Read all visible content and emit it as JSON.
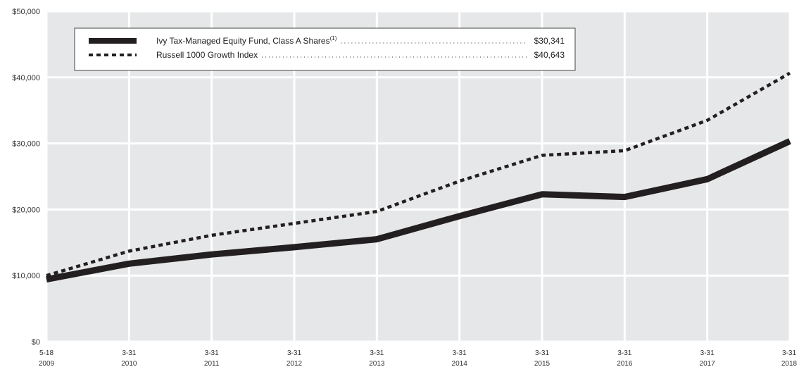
{
  "chart_data": {
    "type": "line",
    "x": [
      {
        "line1": "5-18",
        "line2": "2009"
      },
      {
        "line1": "3-31",
        "line2": "2010"
      },
      {
        "line1": "3-31",
        "line2": "2011"
      },
      {
        "line1": "3-31",
        "line2": "2012"
      },
      {
        "line1": "3-31",
        "line2": "2013"
      },
      {
        "line1": "3-31",
        "line2": "2014"
      },
      {
        "line1": "3-31",
        "line2": "2015"
      },
      {
        "line1": "3-31",
        "line2": "2016"
      },
      {
        "line1": "3-31",
        "line2": "2017"
      },
      {
        "line1": "3-31",
        "line2": "2018"
      }
    ],
    "ylim": [
      0,
      50000
    ],
    "yticks": [
      {
        "value": 0,
        "label": "$0"
      },
      {
        "value": 10000,
        "label": "$10,000"
      },
      {
        "value": 20000,
        "label": "$20,000"
      },
      {
        "value": 30000,
        "label": "$30,000"
      },
      {
        "value": 40000,
        "label": "$40,000"
      },
      {
        "value": 50000,
        "label": "$50,000"
      }
    ],
    "grid": true,
    "legend_position": "top-left",
    "series": [
      {
        "name": "Ivy Tax-Managed Equity Fund, Class A Shares",
        "superscript": "(1)",
        "ending_value_label": "$30,341",
        "style": "solid",
        "color": "#231f20",
        "values": [
          9425,
          11800,
          13200,
          14300,
          15500,
          19000,
          22300,
          21900,
          24600,
          30341
        ]
      },
      {
        "name": "Russell 1000 Growth Index",
        "superscript": "",
        "ending_value_label": "$40,643",
        "style": "dashed",
        "color": "#231f20",
        "values": [
          10000,
          13700,
          16100,
          17900,
          19700,
          24300,
          28200,
          28900,
          33500,
          40643
        ]
      }
    ]
  },
  "colors": {
    "plot_background": "#e6e7e8",
    "gridline": "#ffffff",
    "line": "#231f20"
  }
}
